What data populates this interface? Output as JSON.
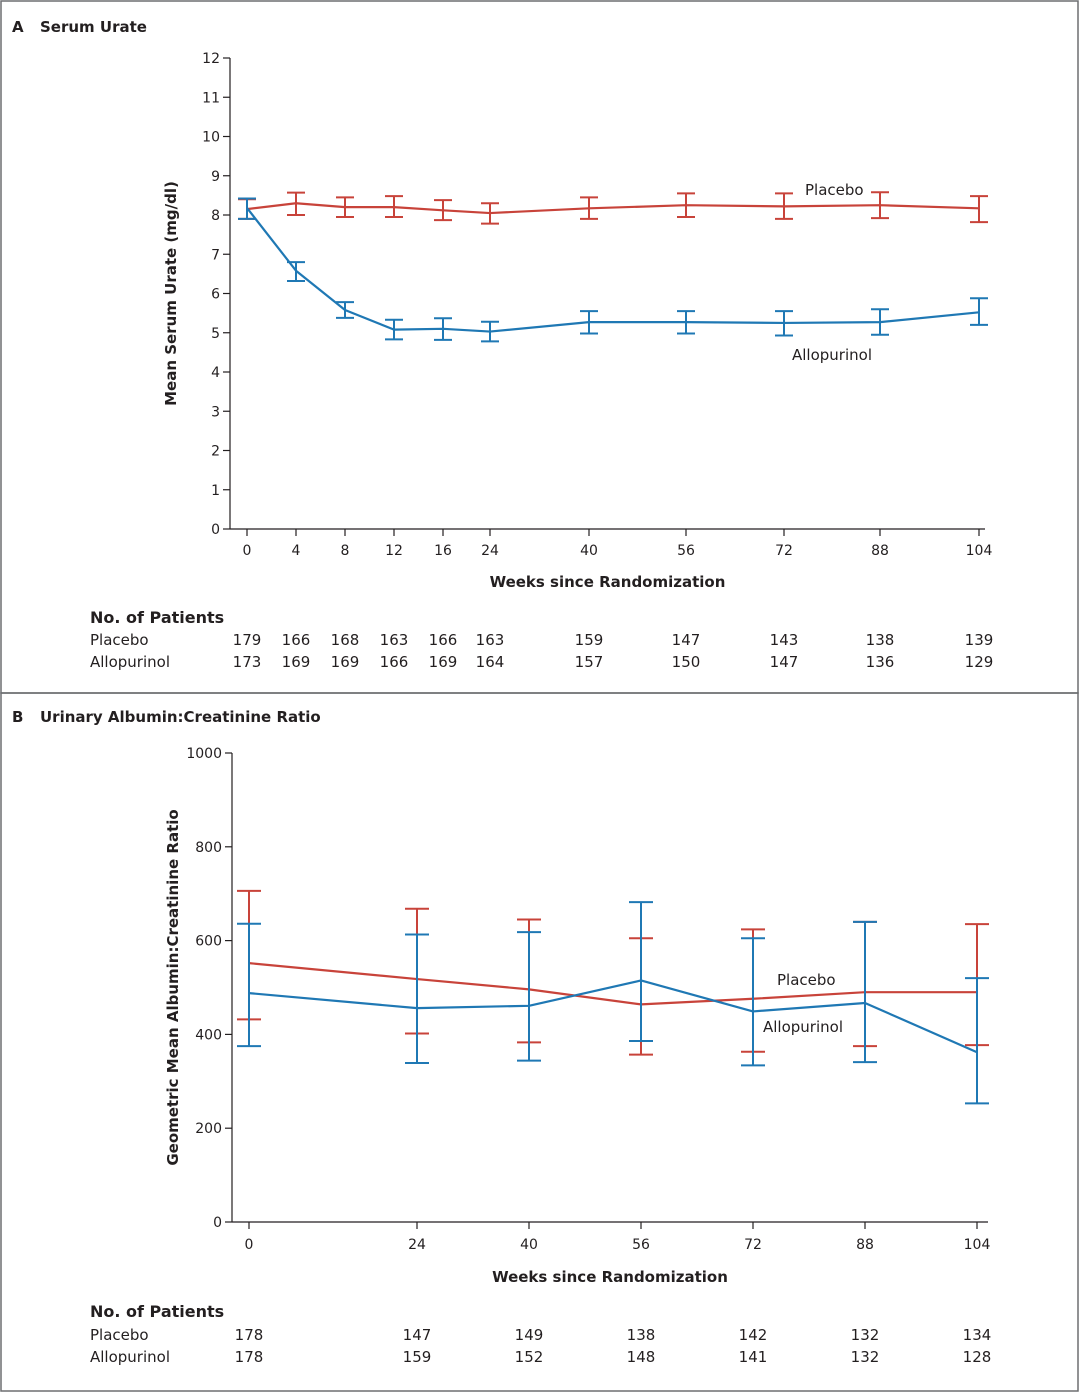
{
  "colors": {
    "placebo": "#c8433a",
    "allopurinol": "#1f78b4",
    "axis": "#231f20",
    "frame": "#6d6e71"
  },
  "chart_data": [
    {
      "panel": "A",
      "type": "line",
      "title": "Serum Urate",
      "xlabel": "Weeks since Randomization",
      "ylabel": "Mean Serum Urate (mg/dl)",
      "ylim": [
        0,
        12
      ],
      "yticks": [
        "0",
        "1",
        "2",
        "3",
        "4",
        "5",
        "6",
        "7",
        "8",
        "9",
        "10",
        "11",
        "12"
      ],
      "x": [
        "0",
        "4",
        "8",
        "12",
        "16",
        "24",
        "40",
        "56",
        "72",
        "88",
        "104"
      ],
      "grid": false,
      "series": [
        {
          "name": "Placebo",
          "color": "#c8433a",
          "values": [
            8.15,
            8.3,
            8.2,
            8.2,
            8.12,
            8.05,
            8.17,
            8.25,
            8.22,
            8.25,
            8.17
          ],
          "lower": [
            7.9,
            8.0,
            7.95,
            7.95,
            7.87,
            7.78,
            7.9,
            7.95,
            7.9,
            7.92,
            7.82
          ],
          "upper": [
            8.4,
            8.57,
            8.45,
            8.48,
            8.38,
            8.3,
            8.45,
            8.55,
            8.55,
            8.58,
            8.48
          ]
        },
        {
          "name": "Allopurinol",
          "color": "#1f78b4",
          "values": [
            8.18,
            6.58,
            5.58,
            5.08,
            5.1,
            5.03,
            5.27,
            5.27,
            5.25,
            5.27,
            5.52
          ],
          "lower": [
            7.9,
            6.32,
            5.38,
            4.83,
            4.82,
            4.78,
            4.98,
            4.98,
            4.93,
            4.95,
            5.2
          ],
          "upper": [
            8.42,
            6.8,
            5.78,
            5.33,
            5.37,
            5.28,
            5.55,
            5.55,
            5.55,
            5.6,
            5.88
          ]
        }
      ],
      "patients_title": "No. of Patients",
      "patients": [
        {
          "name": "Placebo",
          "counts": [
            "179",
            "166",
            "168",
            "163",
            "166",
            "163",
            "159",
            "147",
            "143",
            "138",
            "139"
          ]
        },
        {
          "name": "Allopurinol",
          "counts": [
            "173",
            "169",
            "169",
            "166",
            "169",
            "164",
            "157",
            "150",
            "147",
            "136",
            "129"
          ]
        }
      ]
    },
    {
      "panel": "B",
      "type": "line",
      "title": "Urinary Albumin:Creatinine Ratio",
      "xlabel": "Weeks since Randomization",
      "ylabel": "Geometric Mean Albumin:Creatinine Ratio",
      "ylim": [
        0,
        1000
      ],
      "yticks": [
        "0",
        "200",
        "400",
        "600",
        "800",
        "1000"
      ],
      "x": [
        "0",
        "24",
        "40",
        "56",
        "72",
        "88",
        "104"
      ],
      "grid": false,
      "series": [
        {
          "name": "Placebo",
          "color": "#c8433a",
          "values": [
            552,
            518,
            496,
            464,
            476,
            490,
            490
          ],
          "lower": [
            432,
            402,
            383,
            357,
            363,
            375,
            377
          ],
          "upper": [
            706,
            668,
            645,
            605,
            624,
            640,
            635
          ]
        },
        {
          "name": "Allopurinol",
          "color": "#1f78b4",
          "values": [
            488,
            456,
            461,
            515,
            449,
            467,
            362
          ],
          "lower": [
            375,
            339,
            344,
            386,
            334,
            341,
            253
          ],
          "upper": [
            636,
            613,
            618,
            682,
            605,
            640,
            520
          ]
        }
      ],
      "patients_title": "No. of Patients",
      "patients": [
        {
          "name": "Placebo",
          "counts": [
            "178",
            "147",
            "149",
            "138",
            "142",
            "132",
            "134"
          ]
        },
        {
          "name": "Allopurinol",
          "counts": [
            "178",
            "159",
            "152",
            "148",
            "141",
            "132",
            "128"
          ]
        }
      ]
    }
  ]
}
